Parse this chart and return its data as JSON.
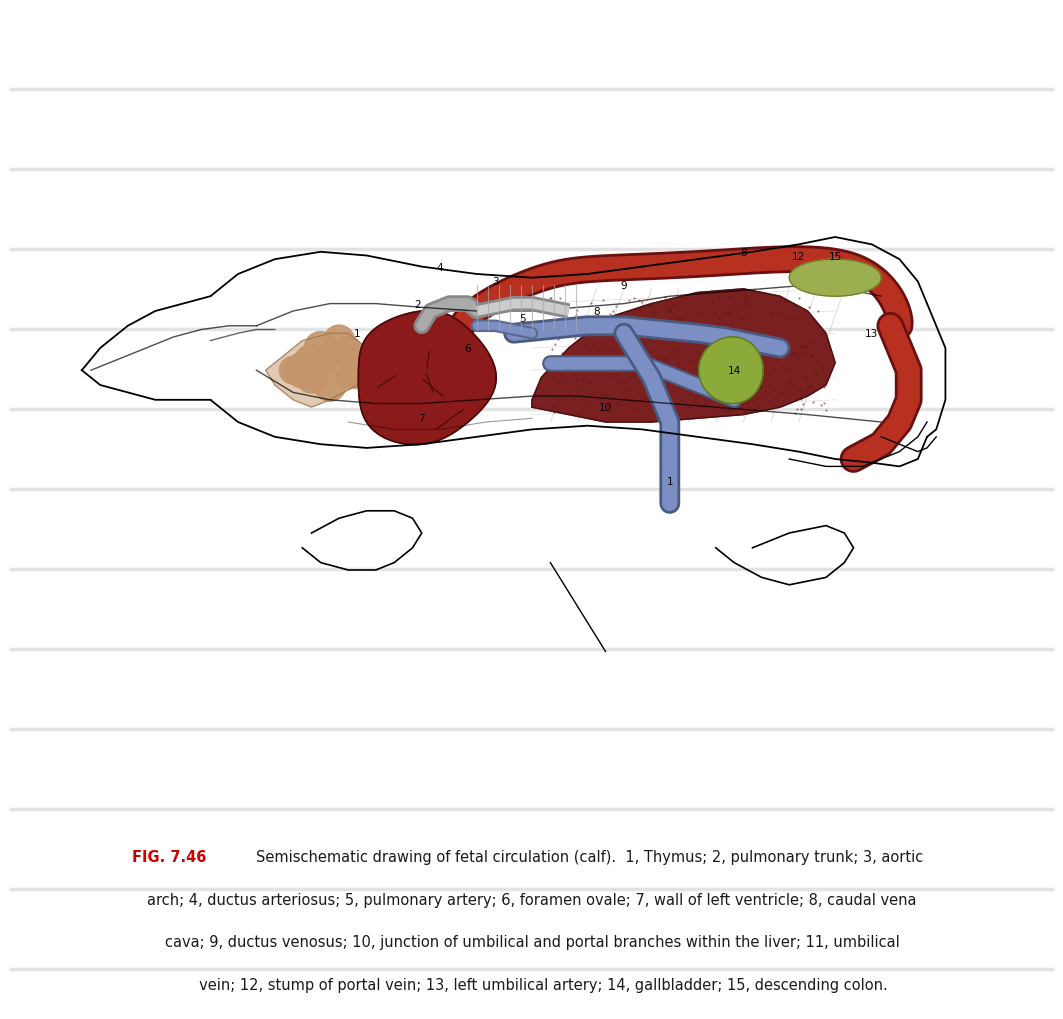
{
  "fig_label": "FIG. 7.46",
  "caption_line1": "Semischematic drawing of fetal circulation (calf).  1, Thymus; 2, pulmonary trunk; 3, aortic",
  "caption_line2": "arch; 4, ductus arteriosus; 5, pulmonary artery; 6, foramen ovale; 7, wall of left ventricle; 8, caudal vena",
  "caption_line3": "cava; 9, ductus venosus; 10, junction of umbilical and portal branches within the liver; 11, umbilical",
  "caption_line4": "     vein; 12, stump of portal vein; 13, left umbilical artery; 14, gallbladder; 15, descending colon.",
  "bg_color": "#ffffff",
  "stripe_color": "#d8d8d8",
  "fig_label_color": "#cc0000",
  "caption_color": "#1a1a1a",
  "aorta_color": "#B83020",
  "heart_color": "#8B1A1A",
  "liver_color": "#7B2020",
  "vein_color": "#7B8FC5",
  "thymus_color": "#C4956A",
  "gallbladder_color": "#8BAA3A",
  "colon_color": "#9CAF50",
  "caption_fontsize": 10.5,
  "fig_label_fontsize": 10.5
}
